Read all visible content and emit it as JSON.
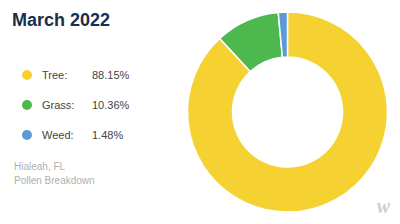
{
  "chart_data": {
    "type": "pie",
    "title": "March 2022",
    "subtitle": [
      "Hialeah, FL",
      "Pollen Breakdown"
    ],
    "categories": [
      "Tree:",
      "Grass:",
      "Weed:"
    ],
    "values": [
      88.15,
      10.36,
      1.48
    ],
    "value_labels": [
      "88.15%",
      "10.36%",
      "1.48%"
    ],
    "colors": [
      "#f5d131",
      "#4db84e",
      "#5b9bd5"
    ],
    "legend": "left",
    "annotations": [
      "w"
    ]
  }
}
